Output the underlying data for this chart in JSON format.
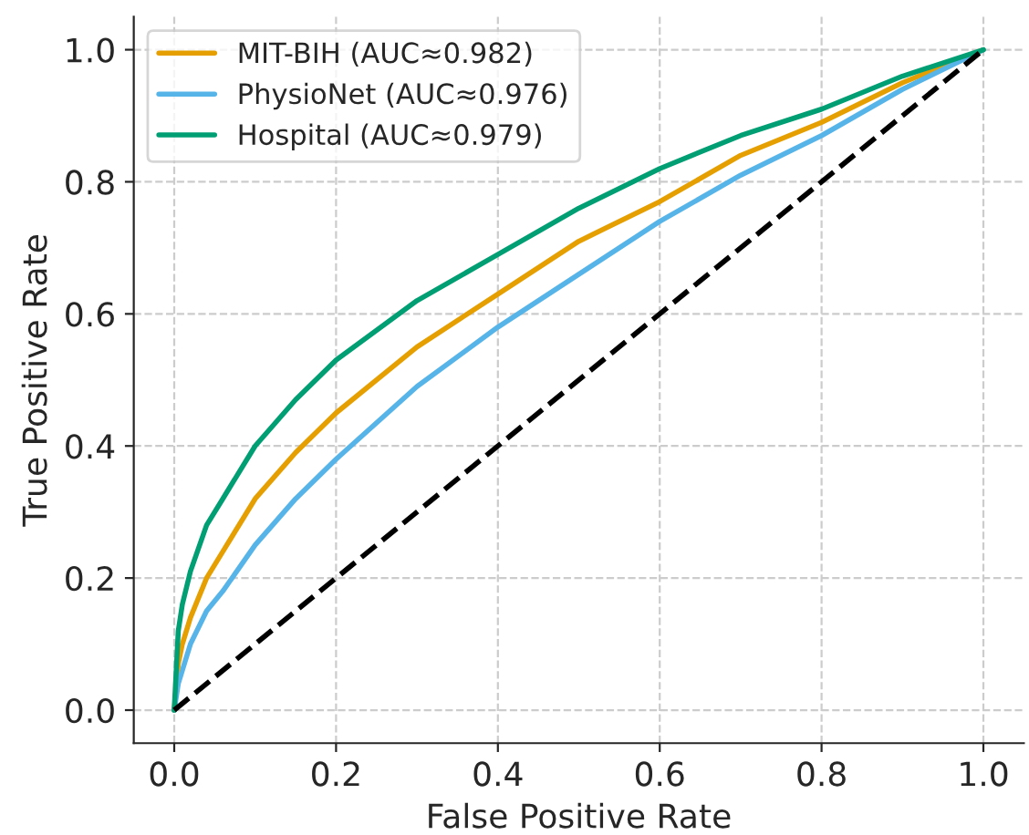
{
  "chart_data": {
    "type": "line",
    "xlabel": "False Positive Rate",
    "ylabel": "True Positive Rate",
    "x": [
      0,
      0.005,
      0.01,
      0.02,
      0.04,
      0.06,
      0.1,
      0.15,
      0.2,
      0.3,
      0.4,
      0.5,
      0.6,
      0.7,
      0.8,
      0.9,
      1.0
    ],
    "series": [
      {
        "name": "MIT-BIH (AUC≈0.982)",
        "color": "#e69f00",
        "values": [
          0,
          0.07,
          0.1,
          0.14,
          0.2,
          0.24,
          0.32,
          0.39,
          0.45,
          0.55,
          0.63,
          0.71,
          0.77,
          0.84,
          0.89,
          0.95,
          1.0
        ]
      },
      {
        "name": "PhysioNet (AUC≈0.976)",
        "color": "#56b4e9",
        "values": [
          0,
          0.04,
          0.06,
          0.1,
          0.15,
          0.18,
          0.25,
          0.32,
          0.38,
          0.49,
          0.58,
          0.66,
          0.74,
          0.81,
          0.87,
          0.94,
          1.0
        ]
      },
      {
        "name": "Hospital (AUC≈0.979)",
        "color": "#009e73",
        "values": [
          0,
          0.12,
          0.16,
          0.21,
          0.28,
          0.32,
          0.4,
          0.47,
          0.53,
          0.62,
          0.69,
          0.76,
          0.82,
          0.87,
          0.91,
          0.96,
          1.0
        ]
      },
      {
        "color": "#000000",
        "line_style": "dashed",
        "x": [
          0,
          1
        ],
        "values": [
          0,
          1
        ]
      }
    ],
    "xlim": [
      -0.05,
      1.05
    ],
    "ylim": [
      -0.05,
      1.05
    ],
    "xticks": [
      {
        "value": 0,
        "label": "0.0"
      },
      0.2,
      0.4,
      0.6,
      0.8,
      {
        "value": 1,
        "label": "1.0"
      }
    ],
    "yticks": [
      {
        "value": 0,
        "label": "0.0"
      },
      0.2,
      0.4,
      0.6,
      0.8,
      {
        "value": 1,
        "label": "1.0"
      }
    ],
    "grid": true,
    "legend": "top left",
    "line_style": "solid",
    "marker": "none"
  }
}
